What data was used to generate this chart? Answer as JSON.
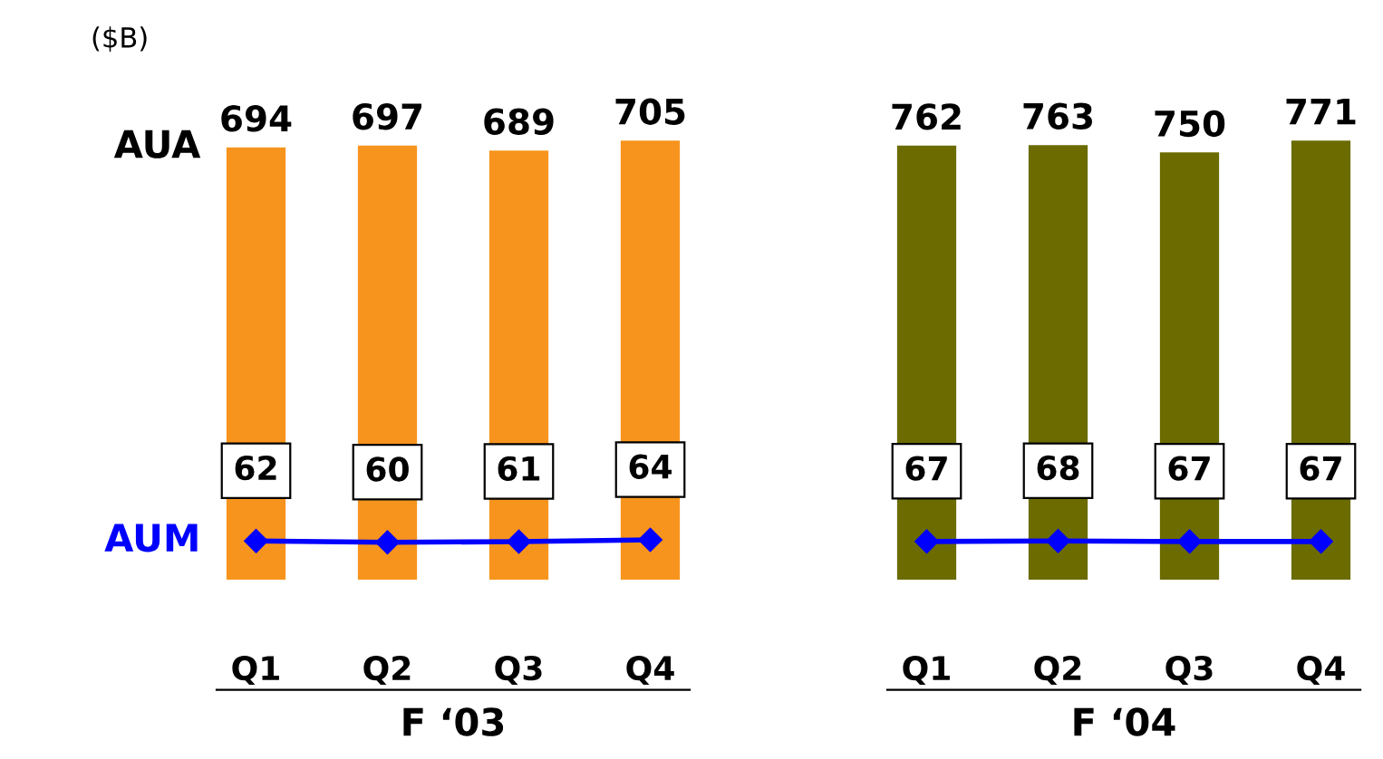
{
  "chart_data": [
    {
      "type": "bar",
      "xlabel": "F ‘03",
      "categories": [
        "Q1",
        "Q2",
        "Q3",
        "Q4"
      ],
      "data_labels": true,
      "annotations": [
        "($B)"
      ],
      "legend": false,
      "series": [
        {
          "name": "AUA",
          "color": "#f7941d",
          "values": [
            694,
            697,
            689,
            705
          ]
        },
        {
          "name": "AUM",
          "type": "line",
          "color": "#0000ff",
          "marker": "diamond",
          "values": [
            62,
            60,
            61,
            64
          ]
        }
      ]
    },
    {
      "type": "bar",
      "xlabel": "F ‘04",
      "categories": [
        "Q1",
        "Q2",
        "Q3",
        "Q4"
      ],
      "data_labels": true,
      "legend": false,
      "series": [
        {
          "color": "#6b6b00",
          "values": [
            762,
            763,
            750,
            771
          ]
        },
        {
          "type": "line",
          "color": "#0000ff",
          "marker": "diamond",
          "values": [
            67,
            68,
            67,
            67
          ]
        }
      ]
    }
  ]
}
